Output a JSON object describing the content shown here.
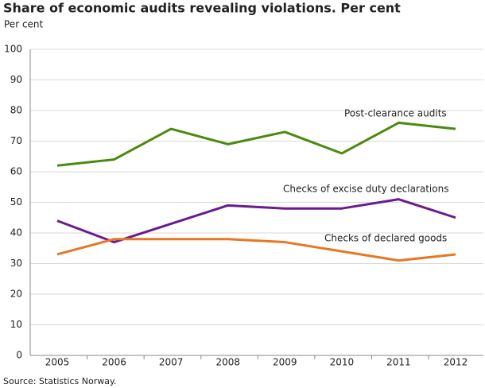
{
  "chart_data": {
    "type": "line",
    "title": "Share of economic audits revealing violations. Per cent",
    "y_label": "Per cent",
    "source": "Source: Statistics Norway.",
    "categories": [
      "2005",
      "2006",
      "2007",
      "2008",
      "2009",
      "2010",
      "2011",
      "2012"
    ],
    "series": [
      {
        "name": "Post-clearance audits",
        "color": "#4b8a0e",
        "values": [
          62,
          64,
          74,
          69,
          73,
          66,
          76,
          74
        ]
      },
      {
        "name": "Checks of excise duty declarations",
        "color": "#6a1b8e",
        "values": [
          44,
          37,
          43,
          49,
          48,
          48,
          51,
          45
        ]
      },
      {
        "name": "Checks of declared goods",
        "color": "#e87722",
        "values": [
          33,
          38,
          38,
          38,
          37,
          34,
          31,
          33
        ]
      }
    ],
    "ylim": [
      0,
      100
    ],
    "yticks": [
      0,
      10,
      20,
      30,
      40,
      50,
      60,
      70,
      80,
      90,
      100
    ],
    "grid": true
  }
}
